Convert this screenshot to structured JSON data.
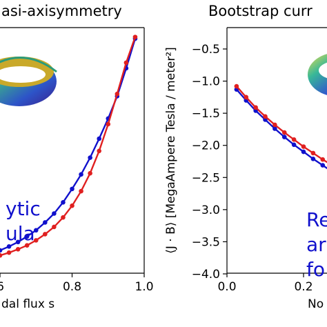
{
  "chart_data": [
    {
      "type": "line",
      "title": "asi-axisymmetry",
      "xlabel": "dal flux s",
      "ylabel": "",
      "xlim": [
        0.45,
        1.0
      ],
      "x_tick_labels": [
        ".6",
        "0.8",
        "1.0"
      ],
      "x_ticks": [
        0.6,
        0.8,
        1.0
      ],
      "annotation": [
        "ytic",
        "ula"
      ],
      "annotation_color": "#1010cc",
      "inset": "torus surface rendering",
      "grid": false,
      "series": [
        {
          "color": "#1010cc",
          "x": [
            0.45,
            0.475,
            0.5,
            0.525,
            0.55,
            0.575,
            0.6,
            0.625,
            0.65,
            0.675,
            0.7,
            0.725,
            0.75,
            0.775,
            0.8,
            0.825,
            0.85,
            0.875,
            0.9,
            0.925,
            0.95,
            0.975
          ],
          "y": [
            0.06,
            0.06,
            0.08,
            0.11,
            0.15,
            0.2,
            0.26,
            0.33,
            0.41,
            0.51,
            0.62,
            0.76,
            0.92,
            1.12,
            1.36,
            1.62,
            1.92,
            2.26,
            2.62,
            3.02,
            3.52,
            4.05
          ]
        },
        {
          "color": "#e02020",
          "x": [
            0.45,
            0.475,
            0.5,
            0.525,
            0.55,
            0.575,
            0.6,
            0.625,
            0.65,
            0.675,
            0.7,
            0.725,
            0.75,
            0.775,
            0.8,
            0.825,
            0.85,
            0.875,
            0.9,
            0.925,
            0.95,
            0.975
          ],
          "y": [
            0.02,
            0.0,
            0.02,
            0.05,
            0.08,
            0.12,
            0.17,
            0.22,
            0.28,
            0.35,
            0.44,
            0.55,
            0.68,
            0.85,
            1.06,
            1.32,
            1.64,
            2.04,
            2.52,
            3.06,
            3.62,
            4.08
          ]
        }
      ]
    },
    {
      "type": "line",
      "title": "Bootstrap curr",
      "xlabel": "No",
      "ylabel": "⟨J · B⟩ [MegaAmpere Tesla / meter²]",
      "xlim": [
        0.0,
        0.3
      ],
      "ylim": [
        -4.1,
        -0.3
      ],
      "x_tick_labels": [
        "0.0",
        "0.2"
      ],
      "x_ticks": [
        0.0,
        0.2
      ],
      "y_tick_labels": [
        "−0.5",
        "−1.0",
        "−1.5",
        "−2.0",
        "−2.5",
        "−3.0",
        "−3.5",
        "−4.0"
      ],
      "y_ticks": [
        -0.5,
        -1.0,
        -1.5,
        -2.0,
        -2.5,
        -3.0,
        -3.5,
        -4.0
      ],
      "annotation": [
        "Re",
        "ar",
        "fo"
      ],
      "annotation_color": "#1010cc",
      "inset": "torus surface rendering",
      "grid": false,
      "series": [
        {
          "color": "#1010cc",
          "x": [
            0.025,
            0.05,
            0.075,
            0.1,
            0.125,
            0.15,
            0.175,
            0.2,
            0.225,
            0.25,
            0.275,
            0.3
          ],
          "y": [
            -1.13,
            -1.3,
            -1.46,
            -1.6,
            -1.74,
            -1.87,
            -1.99,
            -2.1,
            -2.21,
            -2.31,
            -2.41,
            -2.5
          ]
        },
        {
          "color": "#e02020",
          "x": [
            0.025,
            0.05,
            0.075,
            0.1,
            0.125,
            0.15,
            0.175,
            0.2,
            0.225,
            0.25,
            0.275,
            0.3
          ],
          "y": [
            -1.08,
            -1.25,
            -1.41,
            -1.55,
            -1.68,
            -1.8,
            -1.91,
            -2.02,
            -2.12,
            -2.22,
            -2.31,
            -2.4
          ]
        }
      ]
    }
  ]
}
